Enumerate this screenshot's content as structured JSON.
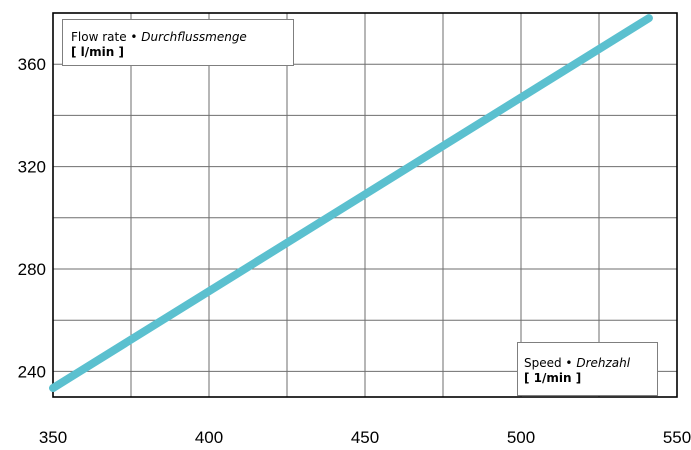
{
  "chart_data": {
    "type": "line",
    "x": [
      350,
      550
    ],
    "y": [
      233.5,
      380
    ],
    "line_start": [
      350,
      233.5
    ],
    "line_end": [
      541,
      378
    ],
    "xlim": [
      350,
      550
    ],
    "ylim": [
      230,
      380
    ],
    "x_ticks": [
      350,
      400,
      450,
      500,
      550
    ],
    "y_ticks": [
      240,
      280,
      320,
      360
    ],
    "x_grid": [
      350,
      375,
      400,
      425,
      450,
      475,
      500,
      525,
      550
    ],
    "y_grid": [
      240,
      260,
      280,
      300,
      320,
      340,
      360,
      380
    ],
    "grid": true,
    "line_color": "#5bc0cf",
    "ylabel": {
      "line1": "Flow rate • ",
      "line1_italic": "Durchflussmenge",
      "unit": "[ l/min ]"
    },
    "xlabel": {
      "line1": "Speed • ",
      "line1_italic": "Drehzahl",
      "unit": "[ 1/min ]"
    }
  }
}
